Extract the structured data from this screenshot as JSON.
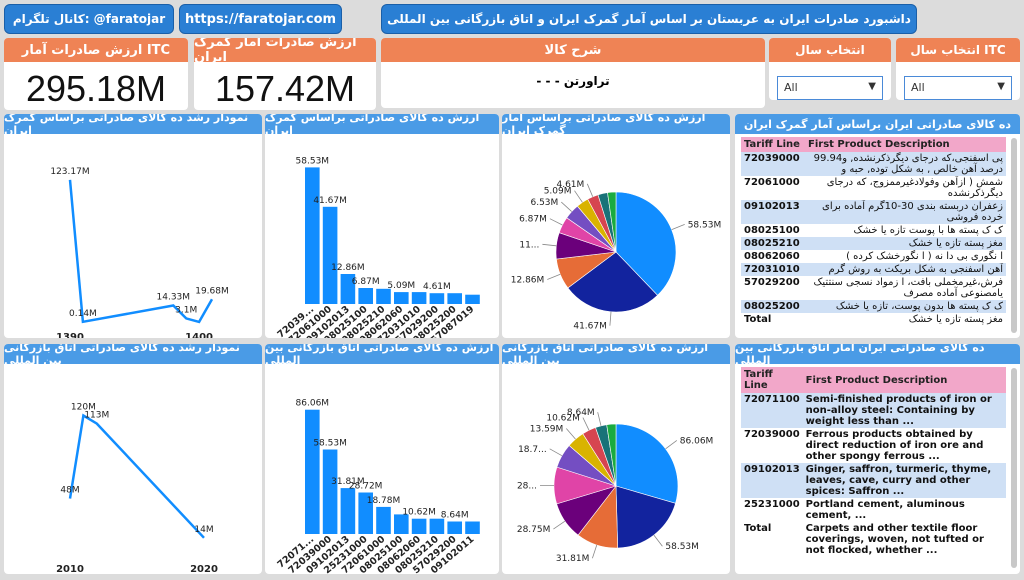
{
  "header": {
    "telegram": "کانال تلگرام: @faratojar",
    "url": "https://faratojar.com",
    "title": "داشبورد صادرات ایران به عربستان بر اساس آمار گمرک ایران و اتاق بازرگانی بین المللی"
  },
  "kpis": {
    "itc_label": "ارزش صادرات آمار ITC",
    "itc_value": "295.18M",
    "customs_label": "ارزش صادرات آمار گمرک ایران",
    "customs_value": "157.42M",
    "product_label": "شرح کالا",
    "product_value": "- - - تراورتن"
  },
  "slicers": {
    "year_label": "انتخاب سال",
    "year_value": "All",
    "itc_year_label": "انتخاب سال ITC",
    "itc_year_value": "All"
  },
  "panels": {
    "growth_customs_title": "نمودار رشد ده کالای صادراتی براساس گمرک ایران",
    "bar_customs_title": "ارزش ده کالای صادراتی براساس گمرک ایران",
    "pie_customs_title": "ارزش ده کالای صادراتی براساس آمار گمرک ایران",
    "table_customs_title": "ده کالای صادراتی ایران براساس آمار گمرک ایران",
    "growth_itc_title": "نمودار رشد ده کالای صادراتی اتاق بازرگانی بین المللی",
    "bar_itc_title": "ارزش ده کالای صادراتی اتاق بازرگانی بین المللی",
    "pie_itc_title": "ارزش ده کالای صادراتی اتاق بازرگانی بین المللی",
    "table_itc_title": "ده کالای صادراتی ایران آمار اتاق بازرگانی بین المللی"
  },
  "table_customs": {
    "col1": "Tariff Line",
    "col2": "First Product Description",
    "rows": [
      {
        "code": "72039000",
        "desc": "پی اسفنجی،که درجای دیگرذکرنشده, و99.94 درصد آهن خالص , به شکل توده, حبه و"
      },
      {
        "code": "72061000",
        "desc": "شمش ( ازآهن وفولادغیرممزوج، که درجای دیگرذکرنشده"
      },
      {
        "code": "09102013",
        "desc": "زعفران دربسته بندی 30-10گرم آماده برای خرده فروشی"
      },
      {
        "code": "08025100",
        "desc": "ک ک پسته ها با پوست تازه یا خشک"
      },
      {
        "code": "08025210",
        "desc": "مغز پسته تازه یا خشک"
      },
      {
        "code": "08062060",
        "desc": "ا نگوری بی دا نه ( ا نگورخشک کرده )"
      },
      {
        "code": "72031010",
        "desc": "آهن اسفنجی به شکل بریکت به روش گرم"
      },
      {
        "code": "57029200",
        "desc": "فرش،غیرمخملی بافت، ا زمواد نسجی سنتتیک یامصنوعی آماده مصرف"
      },
      {
        "code": "08025200",
        "desc": "ک ک پسته ها بدون پوست، تازه یا خشک"
      }
    ],
    "total_label": "Total",
    "total_desc": "مغز پسته تازه یا خشک"
  },
  "table_itc": {
    "col1": "Tariff Line",
    "col2": "First Product Description",
    "rows": [
      {
        "code": "72071100",
        "desc": "Semi-finished products of iron or non-alloy steel: Containing by weight less than ..."
      },
      {
        "code": "72039000",
        "desc": "Ferrous products obtained by direct reduction of iron ore and other spongy ferrous ..."
      },
      {
        "code": "09102013",
        "desc": "Ginger, saffron, turmeric, thyme, leaves, cave, curry and other spices: Saffron ..."
      },
      {
        "code": "25231000",
        "desc": "Portland cement, aluminous cement, ..."
      }
    ],
    "total_label": "Total",
    "total_desc": "Carpets and other textile floor coverings, woven, not tufted or not flocked, whether ..."
  },
  "chart_data": [
    {
      "type": "line",
      "name": "growth_customs",
      "title": "نمودار رشد ده کالای صادراتی براساس گمرک ایران",
      "x_tick_labels": [
        "1390",
        "1400"
      ],
      "points": [
        {
          "x": 1390,
          "y": 123.17,
          "label": "123.17M"
        },
        {
          "x": 1391,
          "y": 0.14,
          "label": "0.14M"
        },
        {
          "x": 1398,
          "y": 14.33,
          "label": "14.33M"
        },
        {
          "x": 1399,
          "y": 3.1,
          "label": "3.1M"
        },
        {
          "x": 1400,
          "y": 0.1,
          "label": ""
        },
        {
          "x": 1401,
          "y": 19.68,
          "label": "19.68M"
        }
      ]
    },
    {
      "type": "bar",
      "name": "bar_customs",
      "title": "ارزش ده کالای صادراتی براساس گمرک ایران",
      "categories": [
        "72039...",
        "72061000",
        "09102013",
        "08025100",
        "08025210",
        "08062060",
        "72031010",
        "57029200",
        "08025200",
        "57087019"
      ],
      "values": [
        58.53,
        41.67,
        12.86,
        6.87,
        6.53,
        5.09,
        5.09,
        4.61,
        4.61,
        4.0
      ],
      "data_labels": [
        "58.53M",
        "41.67M",
        "12.86M",
        "6.87M",
        "",
        "5.09M",
        "",
        "4.61M",
        "",
        ""
      ]
    },
    {
      "type": "pie",
      "name": "pie_customs",
      "title": "ارزش ده کالای صادراتی براساس آمار گمرک ایران",
      "values": [
        58.53,
        41.67,
        12.86,
        11.0,
        6.87,
        6.53,
        5.09,
        4.61,
        4.0,
        3.5
      ],
      "labels": [
        "58.53M",
        "41.67M",
        "12.86M",
        "11...",
        "6.87M",
        "6.53M",
        "5.09M",
        "4.61M",
        "",
        ""
      ],
      "colors": [
        "#118dff",
        "#12239e",
        "#e66c37",
        "#6b007b",
        "#e044a7",
        "#744ec2",
        "#d9b300",
        "#d64550",
        "#197278",
        "#1aab40"
      ]
    },
    {
      "type": "line",
      "name": "growth_itc",
      "title": "نمودار رشد ده کالای صادراتی اتاق بازرگانی بین المللی",
      "x_tick_labels": [
        "2010",
        "2020"
      ],
      "points": [
        {
          "x": 2010,
          "y": 48,
          "label": "48M"
        },
        {
          "x": 2011,
          "y": 120,
          "label": "120M"
        },
        {
          "x": 2012,
          "y": 113,
          "label": "113M"
        },
        {
          "x": 2020,
          "y": 14,
          "label": "14M"
        }
      ]
    },
    {
      "type": "bar",
      "name": "bar_itc",
      "title": "ارزش ده کالای صادراتی اتاق بازرگانی بین المللی",
      "categories": [
        "72071...",
        "72039000",
        "09102013",
        "25231000",
        "72061000",
        "08025100",
        "08062060",
        "08025210",
        "57029200",
        "09102011"
      ],
      "values": [
        86.06,
        58.53,
        31.81,
        28.72,
        18.78,
        13.59,
        10.62,
        10.62,
        8.64,
        8.64
      ],
      "data_labels": [
        "86.06M",
        "58.53M",
        "31.81M",
        "28.72M",
        "18.78M",
        "",
        "10.62M",
        "",
        "8.64M",
        ""
      ]
    },
    {
      "type": "pie",
      "name": "pie_itc",
      "title": "ارزش ده کالای صادراتی اتاق بازرگانی بین المللی",
      "values": [
        86.06,
        58.53,
        31.81,
        28.75,
        28.0,
        18.7,
        13.59,
        10.62,
        8.64,
        7.0
      ],
      "labels": [
        "86.06M",
        "58.53M",
        "31.81M",
        "28.75M",
        "28...",
        "18.7...",
        "13.59M",
        "10.62M",
        "8.64M",
        ""
      ],
      "colors": [
        "#118dff",
        "#12239e",
        "#e66c37",
        "#6b007b",
        "#e044a7",
        "#744ec2",
        "#d9b300",
        "#d64550",
        "#197278",
        "#1aab40"
      ]
    }
  ]
}
